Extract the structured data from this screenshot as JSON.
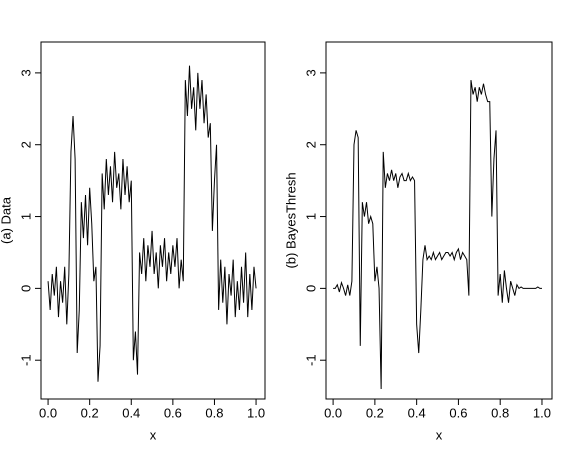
{
  "chart_data": [
    {
      "type": "line",
      "y_label": "(a) Data",
      "x_label": "x",
      "color": "#000000",
      "xlim": [
        -0.034,
        1.043
      ],
      "ylim": [
        -1.54,
        3.43
      ],
      "xticks": [
        {
          "value": 0,
          "label": "0.0"
        },
        {
          "value": 0.2,
          "label": "0.2"
        },
        {
          "value": 0.4,
          "label": "0.4"
        },
        {
          "value": 0.6,
          "label": "0.6"
        },
        {
          "value": 0.8,
          "label": "0.8"
        },
        {
          "value": 1,
          "label": "1.0"
        }
      ],
      "yticks": [
        -1,
        0,
        1,
        2,
        3
      ],
      "x": [
        0,
        0.01,
        0.02,
        0.03,
        0.04,
        0.05,
        0.06,
        0.07,
        0.08,
        0.09,
        0.1,
        0.11,
        0.12,
        0.13,
        0.14,
        0.15,
        0.16,
        0.17,
        0.18,
        0.19,
        0.2,
        0.21,
        0.22,
        0.23,
        0.24,
        0.25,
        0.26,
        0.27,
        0.28,
        0.29,
        0.3,
        0.31,
        0.32,
        0.33,
        0.34,
        0.35,
        0.36,
        0.37,
        0.38,
        0.39,
        0.4,
        0.41,
        0.42,
        0.43,
        0.44,
        0.45,
        0.46,
        0.47,
        0.48,
        0.49,
        0.5,
        0.51,
        0.52,
        0.53,
        0.54,
        0.55,
        0.56,
        0.57,
        0.58,
        0.59,
        0.6,
        0.61,
        0.62,
        0.63,
        0.64,
        0.65,
        0.66,
        0.67,
        0.68,
        0.69,
        0.7,
        0.71,
        0.72,
        0.73,
        0.74,
        0.75,
        0.76,
        0.77,
        0.78,
        0.79,
        0.8,
        0.81,
        0.82,
        0.83,
        0.84,
        0.85,
        0.86,
        0.87,
        0.88,
        0.89,
        0.9,
        0.91,
        0.92,
        0.93,
        0.94,
        0.95,
        0.96,
        0.97,
        0.98,
        0.99,
        1
      ],
      "values": [
        0.1,
        -0.3,
        0.2,
        -0.1,
        0.3,
        -0.4,
        0.1,
        -0.2,
        0.3,
        -0.5,
        0.2,
        1.9,
        2.4,
        1.8,
        -0.9,
        -0.3,
        1.2,
        0.7,
        1.3,
        0.6,
        1.4,
        0.9,
        0.1,
        0.3,
        -1.3,
        -0.8,
        1.6,
        1.1,
        1.8,
        1.3,
        1.7,
        1.2,
        1.9,
        1.4,
        1.6,
        1.1,
        1.8,
        1.3,
        1.7,
        1.2,
        1.5,
        -1.0,
        -0.6,
        -1.2,
        0.5,
        0.2,
        0.7,
        0.1,
        0.6,
        0.3,
        0.8,
        0.2,
        0.5,
        0.0,
        0.6,
        0.3,
        0.7,
        0.1,
        0.5,
        0.2,
        0.6,
        0.3,
        0.7,
        0.0,
        0.4,
        0.1,
        2.9,
        2.4,
        3.1,
        2.5,
        2.8,
        2.2,
        3.0,
        2.5,
        2.9,
        2.3,
        2.7,
        2.1,
        2.3,
        0.8,
        1.5,
        2.0,
        -0.3,
        0.4,
        -0.2,
        0.3,
        -0.5,
        0.2,
        -0.1,
        0.4,
        -0.4,
        0.1,
        -0.3,
        0.3,
        -0.2,
        0.5,
        -0.4,
        0.2,
        -0.3,
        0.3,
        0.0
      ]
    },
    {
      "type": "line",
      "y_label": "(b) BayesThresh",
      "x_label": "x",
      "color": "#000000",
      "xlim": [
        -0.034,
        1.048
      ],
      "ylim": [
        -1.54,
        3.43
      ],
      "xticks": [
        {
          "value": 0,
          "label": "0.0"
        },
        {
          "value": 0.2,
          "label": "0.2"
        },
        {
          "value": 0.4,
          "label": "0.4"
        },
        {
          "value": 0.6,
          "label": "0.6"
        },
        {
          "value": 0.8,
          "label": "0.8"
        },
        {
          "value": 1,
          "label": "1.0"
        }
      ],
      "yticks": [
        -1,
        0,
        1,
        2,
        3
      ],
      "x": [
        0,
        0.01,
        0.02,
        0.03,
        0.04,
        0.05,
        0.06,
        0.07,
        0.08,
        0.09,
        0.1,
        0.11,
        0.12,
        0.13,
        0.14,
        0.15,
        0.16,
        0.17,
        0.18,
        0.19,
        0.2,
        0.21,
        0.22,
        0.23,
        0.24,
        0.25,
        0.26,
        0.27,
        0.28,
        0.29,
        0.3,
        0.31,
        0.32,
        0.33,
        0.34,
        0.35,
        0.36,
        0.37,
        0.38,
        0.39,
        0.4,
        0.41,
        0.42,
        0.43,
        0.44,
        0.45,
        0.46,
        0.47,
        0.48,
        0.49,
        0.5,
        0.51,
        0.52,
        0.53,
        0.54,
        0.55,
        0.56,
        0.57,
        0.58,
        0.59,
        0.6,
        0.61,
        0.62,
        0.63,
        0.64,
        0.65,
        0.66,
        0.67,
        0.68,
        0.69,
        0.7,
        0.71,
        0.72,
        0.73,
        0.74,
        0.75,
        0.76,
        0.77,
        0.78,
        0.79,
        0.8,
        0.81,
        0.82,
        0.83,
        0.84,
        0.85,
        0.86,
        0.87,
        0.88,
        0.89,
        0.9,
        0.91,
        0.92,
        0.93,
        0.94,
        0.95,
        0.96,
        0.97,
        0.98,
        0.99,
        1
      ],
      "values": [
        0,
        0,
        0.05,
        -0.05,
        0.08,
        0,
        -0.1,
        0.05,
        -0.1,
        0.1,
        2.0,
        2.2,
        2.1,
        -0.8,
        1.2,
        1.0,
        1.2,
        0.9,
        1.0,
        0.9,
        0.1,
        0.3,
        0.0,
        -1.4,
        1.9,
        1.4,
        1.6,
        1.5,
        1.65,
        1.5,
        1.6,
        1.4,
        1.55,
        1.6,
        1.5,
        1.5,
        1.6,
        1.5,
        1.55,
        1.5,
        -0.5,
        -0.9,
        -0.3,
        0.4,
        0.6,
        0.4,
        0.45,
        0.4,
        0.5,
        0.4,
        0.45,
        0.5,
        0.4,
        0.45,
        0.5,
        0.5,
        0.45,
        0.5,
        0.4,
        0.5,
        0.55,
        0.4,
        0.5,
        0.45,
        0.4,
        -0.1,
        2.9,
        2.7,
        2.8,
        2.6,
        2.8,
        2.7,
        2.85,
        2.7,
        2.6,
        2.6,
        1.0,
        1.8,
        2.2,
        -0.1,
        0.2,
        -0.2,
        0.25,
        0.0,
        -0.2,
        0.1,
        0.0,
        -0.1,
        0.05,
        0.0,
        0.02,
        0.0,
        0.0,
        0.0,
        0.0,
        0.0,
        0.0,
        0.0,
        0.02,
        0.0,
        0.0
      ]
    }
  ]
}
